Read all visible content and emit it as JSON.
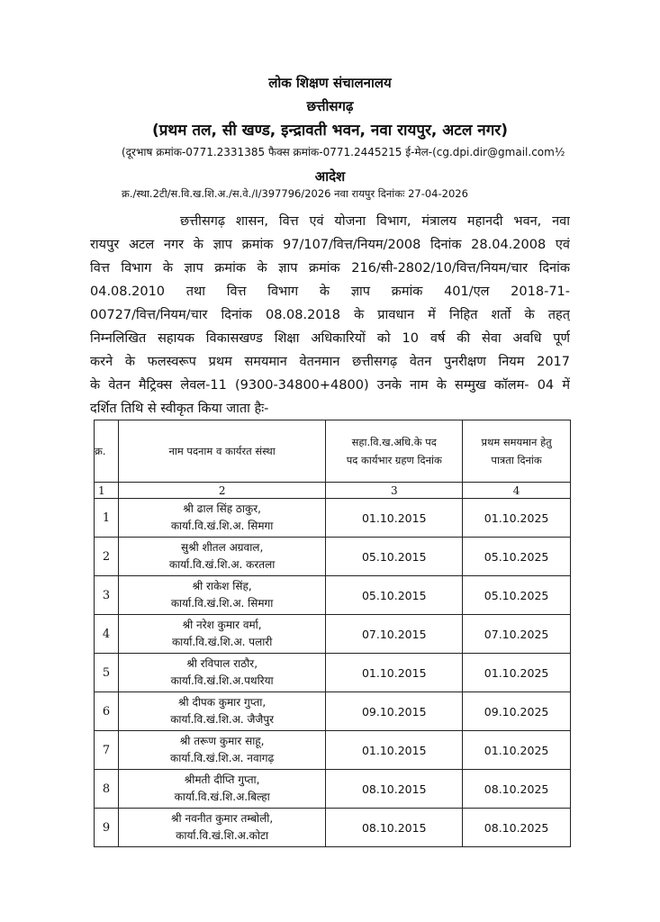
{
  "header": {
    "office": "लोक शिक्षण संचालनालय",
    "state": "छत्तीसगढ़",
    "address": "(प्रथम तल, सी खण्ड, इन्द्रावती भवन, नवा रायपुर, अटल नगर)",
    "contact": "(दूरभाष क्रमांक-0771.2331385 फैक्स क्रमांक-0771.2445215 ई-मेल-(cg.dpi.dir@gmail.com½",
    "title": "आदेश",
    "reference": "क्र./स्था.2टी/स.वि.ख.शि.अ./स.वे./I/397796/2026 नवा रायपुर दिनांकः 27-04-2026"
  },
  "body_lines": [
    "छत्तीसगढ़ शासन, वित्त एवं योजना विभाग, मंत्रालय महानदी भवन, नवा",
    "रायपुर अटल नगर के ज्ञाप क्रमांक 97/107/वित्त/नियम/2008 दिनांक 28.04.2008 एवं",
    "वित्त विभाग के ज्ञाप क्रमांक के ज्ञाप क्रमांक 216/सी-2802/10/वित्त/नियम/चार दिनांक",
    "04.08.2010 तथा वित्त विभाग के ज्ञाप क्रमांक 401/एल 2018-71-",
    "00727/वित्त/नियम/चार दिनांक 08.08.2018 के प्रावधान में निहित शर्तो के तहत्",
    "निम्नलिखित सहायक विकासखण्ड शिक्षा अधिकारियों को 10 वर्ष की सेवा अवधि पूर्ण",
    "करने के फलस्वरूप प्रथम समयमान वेतनमान छत्तीसगढ़ वेतन पुनरीक्षण नियम 2017",
    "के वेतन मैट्रिक्स लेवल-11 (9300-34800+4800) उनके नाम के सम्मुख कॉलम- 04 में",
    "दर्शित तिथि से स्वीकृत किया जाता हैः-"
  ],
  "table": {
    "headers": [
      "क्र.",
      "नाम पदनाम व कार्यरत संस्था",
      "सहा.वि.ख.अधि.के पद पद कार्यभार ग्रहण दिनांक",
      "प्रथम समयमान हेतु पात्रता दिनांक"
    ],
    "column_numbers": [
      "1",
      "2",
      "3",
      "4"
    ],
    "rows": [
      {
        "sn": "1",
        "name": "श्री ढाल सिंह ठाकुर,",
        "post": "कार्या.वि.खं.शि.अ. सिमगा",
        "join": "01.10.2015",
        "eligible": "01.10.2025"
      },
      {
        "sn": "2",
        "name": "सुश्री शीतल अग्रवाल,",
        "post": "कार्या.वि.खं.शि.अ. करतला",
        "join": "05.10.2015",
        "eligible": "05.10.2025"
      },
      {
        "sn": "3",
        "name": "श्री राकेश सिंह,",
        "post": "कार्या.वि.खं.शि.अ. सिमगा",
        "join": "05.10.2015",
        "eligible": "05.10.2025"
      },
      {
        "sn": "4",
        "name": "श्री नरेश कुमार वर्मा,",
        "post": "कार्या.वि.खं.शि.अ. पलारी",
        "join": "07.10.2015",
        "eligible": "07.10.2025"
      },
      {
        "sn": "5",
        "name": "श्री रविपाल राठौर,",
        "post": "कार्या.वि.खं.शि.अ.पथरिया",
        "join": "01.10.2015",
        "eligible": "01.10.2025"
      },
      {
        "sn": "6",
        "name": "श्री दीपक कुमार गुप्ता,",
        "post": "कार्या.वि.खं.शि.अ. जैजैपुर",
        "join": "09.10.2015",
        "eligible": "09.10.2025"
      },
      {
        "sn": "7",
        "name": "श्री तरूण कुमार साहू,",
        "post": "कार्या.वि.खं.शि.अ. नवागढ़",
        "join": "01.10.2015",
        "eligible": "01.10.2025"
      },
      {
        "sn": "8",
        "name": "श्रीमती दीप्ति गुप्ता,",
        "post": "कार्या.वि.खं.शि.अ.बिल्हा",
        "join": "08.10.2015",
        "eligible": "08.10.2025"
      },
      {
        "sn": "9",
        "name": "श्री नवनीत कुमार तम्बोली,",
        "post": "कार्या.वि.खं.शि.अ.कोटा",
        "join": "08.10.2015",
        "eligible": "08.10.2025"
      }
    ]
  }
}
